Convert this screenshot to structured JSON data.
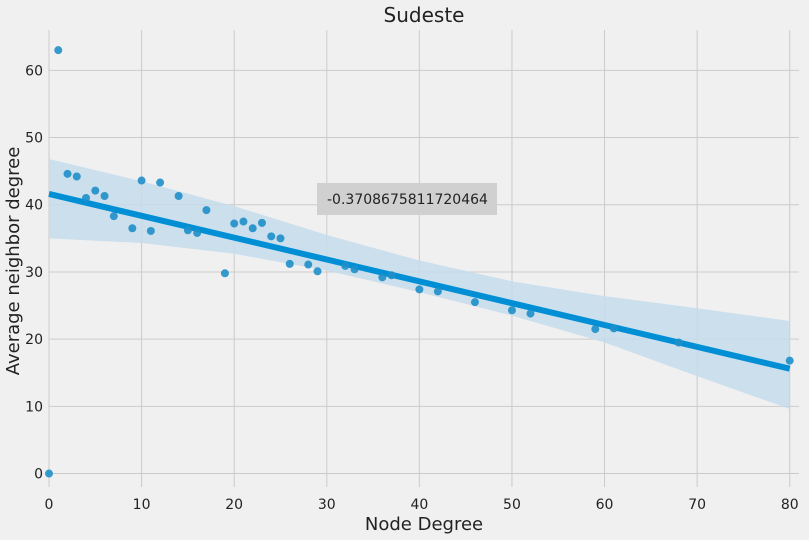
{
  "chart_data": {
    "type": "scatter",
    "title": "Sudeste",
    "xlabel": "Node Degree",
    "ylabel": "Average neighbor degree",
    "xlim": [
      0,
      81
    ],
    "ylim": [
      -2,
      66
    ],
    "xticks": [
      0,
      10,
      20,
      30,
      40,
      50,
      60,
      70,
      80
    ],
    "yticks": [
      0,
      10,
      20,
      30,
      40,
      50,
      60
    ],
    "grid": true,
    "annotation": "-0.3708675811720464",
    "colors": {
      "background": "#f0f0f0",
      "grid": "#cbcbcb",
      "points": "#1f8fc9",
      "fit_line": "#008fd5",
      "ci_band": "#c6dcec",
      "annotation_box": "#d0d0d0"
    },
    "series": [
      {
        "points": [
          [
            0,
            0
          ],
          [
            1,
            63
          ],
          [
            2,
            44.6
          ],
          [
            3,
            44.2
          ],
          [
            4,
            41
          ],
          [
            5,
            42.1
          ],
          [
            6,
            41.3
          ],
          [
            7,
            38.3
          ],
          [
            9,
            36.5
          ],
          [
            10,
            43.6
          ],
          [
            11,
            36.1
          ],
          [
            12,
            43.3
          ],
          [
            14,
            41.3
          ],
          [
            15,
            36.2
          ],
          [
            16,
            35.8
          ],
          [
            17,
            39.2
          ],
          [
            19,
            29.8
          ],
          [
            20,
            37.2
          ],
          [
            21,
            37.5
          ],
          [
            22,
            36.5
          ],
          [
            23,
            37.3
          ],
          [
            24,
            35.3
          ],
          [
            25,
            35
          ],
          [
            26,
            31.2
          ],
          [
            28,
            31.1
          ],
          [
            29,
            30.1
          ],
          [
            32,
            30.9
          ],
          [
            33,
            30.4
          ],
          [
            36,
            29.2
          ],
          [
            37,
            29.5
          ],
          [
            40,
            27.4
          ],
          [
            42,
            27.1
          ],
          [
            46,
            25.5
          ],
          [
            50,
            24.3
          ],
          [
            52,
            23.8
          ],
          [
            59,
            21.5
          ],
          [
            61,
            21.6
          ],
          [
            68,
            19.5
          ],
          [
            80,
            16.8
          ]
        ]
      }
    ],
    "regression": {
      "x": [
        0,
        80
      ],
      "y": [
        41.6,
        15.6
      ],
      "ci_x": [
        0,
        10,
        20,
        30,
        40,
        50,
        60,
        70,
        80
      ],
      "ci_lower": [
        35,
        34.3,
        32.7,
        30.2,
        27,
        23.5,
        19.5,
        14.5,
        9.6
      ],
      "ci_upper": [
        46.8,
        43.5,
        39.8,
        35.5,
        31.7,
        28.6,
        26.4,
        24.6,
        22.7
      ]
    }
  }
}
